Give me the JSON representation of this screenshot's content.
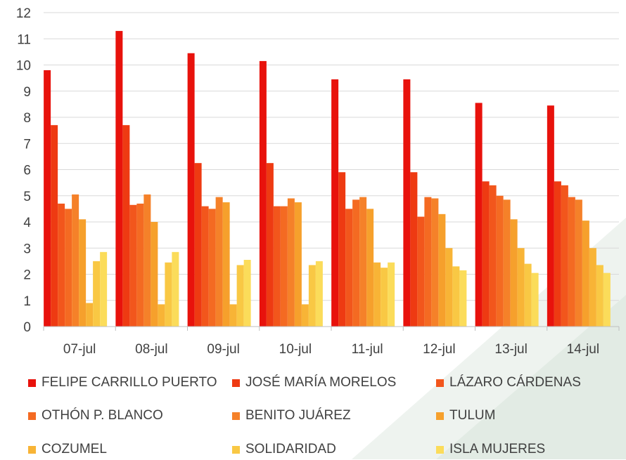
{
  "chart_data": {
    "type": "bar",
    "title": "",
    "xlabel": "",
    "ylabel": "",
    "ylim": [
      0,
      12
    ],
    "yticks": [
      0,
      1,
      2,
      3,
      4,
      5,
      6,
      7,
      8,
      9,
      10,
      11,
      12
    ],
    "grid": true,
    "legend_position": "bottom",
    "categories": [
      "07-jul",
      "08-jul",
      "09-jul",
      "10-jul",
      "11-jul",
      "12-jul",
      "13-jul",
      "14-jul"
    ],
    "series": [
      {
        "name": "FELIPE CARRILLO PUERTO",
        "color": "#e8120c",
        "values": [
          9.8,
          11.3,
          10.45,
          10.15,
          9.45,
          9.45,
          8.55,
          8.45
        ]
      },
      {
        "name": "JOSÉ MARÍA MORELOS",
        "color": "#ee3a12",
        "values": [
          7.7,
          7.7,
          6.25,
          6.25,
          5.9,
          5.9,
          5.55,
          5.55
        ]
      },
      {
        "name": "LÁZARO CÁRDENAS",
        "color": "#f2561c",
        "values": [
          4.7,
          4.65,
          4.6,
          4.6,
          4.5,
          4.2,
          5.4,
          5.4
        ]
      },
      {
        "name": "OTHÓN P. BLANCO",
        "color": "#f46a22",
        "values": [
          4.5,
          4.7,
          4.5,
          4.6,
          4.85,
          4.95,
          5.0,
          4.95
        ]
      },
      {
        "name": "BENITO JUÁREZ",
        "color": "#f58129",
        "values": [
          5.05,
          5.05,
          4.95,
          4.9,
          4.95,
          4.9,
          4.85,
          4.85
        ]
      },
      {
        "name": "TULUM",
        "color": "#f6a02c",
        "values": [
          4.1,
          4.0,
          4.75,
          4.75,
          4.5,
          4.3,
          4.1,
          4.05
        ]
      },
      {
        "name": "COZUMEL",
        "color": "#f8b436",
        "values": [
          0.9,
          0.85,
          0.85,
          0.85,
          2.45,
          3.0,
          3.0,
          3.0
        ]
      },
      {
        "name": "SOLIDARIDAD",
        "color": "#f9c844",
        "values": [
          2.5,
          2.45,
          2.35,
          2.35,
          2.25,
          2.3,
          2.4,
          2.35
        ]
      },
      {
        "name": "ISLA MUJERES",
        "color": "#fbdc5a",
        "values": [
          2.85,
          2.85,
          2.55,
          2.5,
          2.45,
          2.15,
          2.05,
          2.05
        ]
      }
    ]
  }
}
